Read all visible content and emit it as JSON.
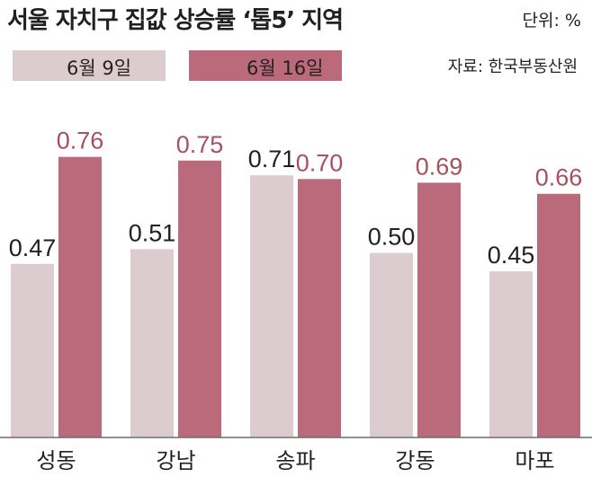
{
  "header": {
    "title": "서울 자치구 집값 상승률 ‘톱5’ 지역",
    "unit": "단위: %",
    "source": "자료: 한국부동산원"
  },
  "colors": {
    "series_1": "#dccccf",
    "series_2": "#bb6a7b",
    "series_2_label": "#a94f62",
    "text": "#231f20"
  },
  "legend": [
    {
      "label": "6월 9일",
      "color": "#dccccf"
    },
    {
      "label": "6월 16일",
      "color": "#bb6a7b"
    }
  ],
  "chart_data": {
    "type": "bar",
    "title": "서울 자치구 집값 상승률 ‘톱5’ 지역",
    "categories": [
      "성동",
      "강남",
      "송파",
      "강동",
      "마포"
    ],
    "series": [
      {
        "name": "6월 9일",
        "values": [
          0.47,
          0.51,
          0.71,
          0.5,
          0.45
        ]
      },
      {
        "name": "6월 16일",
        "values": [
          0.76,
          0.75,
          0.7,
          0.69,
          0.66
        ]
      }
    ],
    "ylim": [
      0,
      0.85
    ],
    "grid": false,
    "legend_position": "top-left"
  }
}
